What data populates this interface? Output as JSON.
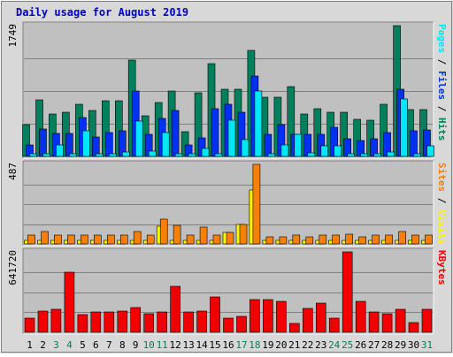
{
  "chart_data": {
    "type": "bar",
    "title": "Daily usage for August 2019",
    "days": [
      "1",
      "2",
      "3",
      "4",
      "5",
      "6",
      "7",
      "8",
      "9",
      "10",
      "11",
      "12",
      "13",
      "14",
      "15",
      "16",
      "17",
      "18",
      "19",
      "20",
      "21",
      "22",
      "23",
      "24",
      "25",
      "26",
      "27",
      "28",
      "29",
      "30",
      "31"
    ],
    "weekend_days": [
      "3",
      "4",
      "10",
      "11",
      "17",
      "18",
      "24",
      "25",
      "31"
    ],
    "panels": [
      {
        "id": "hits",
        "ylabel_max": "1749",
        "ymax": 1749,
        "series": [
          {
            "name": "Hits",
            "color": "#00805c",
            "values": [
              420,
              760,
              570,
              590,
              700,
              620,
              740,
              750,
              1290,
              540,
              720,
              870,
              330,
              850,
              1240,
              900,
              900,
              1420,
              790,
              790,
              930,
              570,
              640,
              590,
              590,
              500,
              490,
              700,
              1749,
              630,
              630
            ]
          },
          {
            "name": "Files",
            "color": "#0030f0",
            "values": [
              150,
              370,
              310,
              310,
              520,
              260,
              320,
              340,
              870,
              290,
              510,
              610,
              150,
              250,
              640,
              700,
              590,
              1070,
              290,
              430,
              290,
              290,
              290,
              390,
              240,
              210,
              240,
              320,
              900,
              340,
              350
            ]
          },
          {
            "name": "Pages",
            "color": "#00e8f8",
            "values": [
              40,
              40,
              150,
              40,
              340,
              40,
              40,
              60,
              470,
              70,
              320,
              40,
              40,
              110,
              40,
              480,
              230,
              880,
              40,
              150,
              300,
              50,
              140,
              140,
              40,
              40,
              40,
              60,
              770,
              40,
              140
            ]
          }
        ]
      },
      {
        "id": "visits",
        "ylabel_max": "487",
        "ymax": 487,
        "series": [
          {
            "name": "Visits",
            "color": "#f8f800",
            "values": [
              20,
              20,
              20,
              20,
              20,
              20,
              20,
              20,
              20,
              20,
              110,
              20,
              20,
              20,
              20,
              70,
              120,
              330,
              20,
              20,
              20,
              20,
              20,
              20,
              20,
              20,
              20,
              20,
              20,
              20,
              20
            ]
          },
          {
            "name": "Sites",
            "color": "#f88008",
            "values": [
              55,
              75,
              55,
              55,
              55,
              55,
              55,
              55,
              75,
              55,
              150,
              115,
              55,
              105,
              55,
              70,
              118,
              487,
              45,
              45,
              55,
              45,
              55,
              55,
              60,
              45,
              55,
              55,
              75,
              55,
              55
            ]
          }
        ]
      },
      {
        "id": "kbytes",
        "ylabel_max": "641720",
        "ymax": 641720,
        "series": [
          {
            "name": "KBytes",
            "color": "#f00000",
            "values": [
              110000,
              170000,
              180000,
              480000,
              140000,
              160000,
              160000,
              170000,
              200000,
              150000,
              160000,
              370000,
              160000,
              170000,
              280000,
              115000,
              130000,
              260000,
              260000,
              250000,
              70000,
              190000,
              230000,
              115000,
              641720,
              250000,
              160000,
              150000,
              180000,
              80000,
              180000
            ]
          }
        ]
      }
    ],
    "right_labels": {
      "hits": [
        {
          "text": "Pages",
          "color": "#00e8f8"
        },
        {
          "text": " / ",
          "color": "#000000"
        },
        {
          "text": "Files",
          "color": "#0030f0"
        },
        {
          "text": " / ",
          "color": "#000000"
        },
        {
          "text": "Hits",
          "color": "#00805c"
        }
      ],
      "visits": [
        {
          "text": "Sites",
          "color": "#f88008"
        },
        {
          "text": " / ",
          "color": "#000000"
        },
        {
          "text": "Visits",
          "color": "#f8f800"
        }
      ],
      "kbytes": [
        {
          "text": "KBytes",
          "color": "#f00000"
        }
      ]
    },
    "colors": {
      "title": "#0000c0",
      "weekday_label": "#000000",
      "weekend_label": "#00805c",
      "plot_bg": "#c0c0c0",
      "frame_bg": "#d8d8d8",
      "gridline": "#808080"
    }
  }
}
